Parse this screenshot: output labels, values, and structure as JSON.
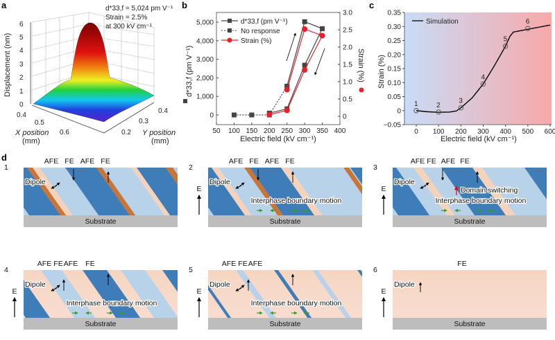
{
  "panel_labels": {
    "a": "a",
    "b": "b",
    "c": "c",
    "d": "d"
  },
  "panel_a": {
    "annotation": [
      "d*33,f = 5,024 pm V⁻¹",
      "Strain = 2.5%",
      "at 300 kV cm⁻¹"
    ],
    "zlabel": "Displacement (nm)",
    "z_ticks": [
      "0",
      "1",
      "2",
      "3",
      "4",
      "5",
      "6"
    ],
    "xlabel": [
      "X position",
      "(mm)"
    ],
    "x_ticks": [
      "0.4",
      "0.5",
      "0.6"
    ],
    "ylabel": [
      "Y position",
      "(mm)"
    ],
    "y_ticks": [
      "0.2",
      "0.3",
      "0.4"
    ],
    "colormap": "rainbow (purple-blue-cyan-green-yellow-red-dark red)"
  },
  "chart_data": [
    {
      "type": "line",
      "panel": "b",
      "xlabel": "Electric field (kV cm⁻¹)",
      "ylabel": "d*33,f (pm V⁻¹)",
      "ylabel_right": "Strain (%)",
      "xlim": [
        50,
        400
      ],
      "ylim": [
        -300,
        5500
      ],
      "ylim_right": [
        -0.15,
        3.0
      ],
      "x_ticks": [
        "50",
        "100",
        "150",
        "200",
        "250",
        "300",
        "350",
        "400"
      ],
      "y_ticks": [
        "0",
        "1,000",
        "2,000",
        "3,000",
        "4,000",
        "5,000"
      ],
      "y_ticks_right": [
        "0",
        "0.5",
        "1.0",
        "1.5",
        "2.0",
        "2.5",
        "3.0"
      ],
      "legend_position": "top-left",
      "series": [
        {
          "name": "d*33,f (pm V⁻¹)",
          "style": "solid",
          "color": "#444444",
          "marker": "square",
          "axis": "left",
          "x": [
            250,
            300,
            350,
            300,
            250,
            200
          ],
          "y": [
            1550,
            5024,
            4650,
            2680,
            330,
            100
          ]
        },
        {
          "name": "No response",
          "style": "dotted",
          "color": "#444444",
          "marker": "square",
          "axis": "left",
          "x": [
            100,
            150,
            200,
            250
          ],
          "y": [
            0,
            0,
            0,
            1550
          ]
        },
        {
          "name": "Strain (%)",
          "style": "solid",
          "color": "#e8202a",
          "marker": "circle",
          "axis": "right",
          "x": [
            250,
            300,
            350,
            300,
            250,
            200
          ],
          "y": [
            0.77,
            2.52,
            2.33,
            1.34,
            0.17,
            0.05
          ]
        }
      ]
    },
    {
      "type": "line",
      "panel": "c",
      "xlabel": "Electric field (kV cm⁻¹)",
      "ylabel": "Strain (%)",
      "xlim": [
        -40,
        600
      ],
      "ylim": [
        -0.05,
        0.35
      ],
      "x_ticks": [
        "0",
        "100",
        "200",
        "300",
        "400",
        "500",
        "600"
      ],
      "y_ticks": [
        "−0.05",
        "0",
        "0.05",
        "0.10",
        "0.15",
        "0.20",
        "0.25",
        "0.30",
        "0.35"
      ],
      "legend_position": "top-left",
      "background_gradient": [
        "#c9dcf7",
        "#f7a9a9"
      ],
      "series": [
        {
          "name": "Simulation",
          "color": "#000000",
          "x": [
            0,
            50,
            100,
            150,
            180,
            200,
            250,
            300,
            350,
            400,
            420,
            435,
            500,
            600
          ],
          "y": [
            0,
            -0.004,
            -0.006,
            -0.005,
            -0.001,
            0.01,
            0.045,
            0.095,
            0.16,
            0.23,
            0.265,
            0.28,
            0.29,
            0.305
          ]
        }
      ],
      "markers": {
        "labels": [
          "1",
          "2",
          "3",
          "4",
          "5",
          "6"
        ],
        "x": [
          0,
          100,
          200,
          300,
          400,
          500
        ],
        "y": [
          0,
          -0.005,
          0.01,
          0.095,
          0.23,
          0.293
        ]
      }
    }
  ],
  "panel_d": {
    "substrate": "Substrate",
    "dipole": "Dipole",
    "field": "E",
    "ibm": "Interphase boundary motion",
    "domain_switching": "Domain switching",
    "panels": [
      {
        "num": "1",
        "phases": [
          "AFE",
          "FE",
          "AFE",
          "FE"
        ]
      },
      {
        "num": "2",
        "phases": [
          "AFE",
          "FE",
          "AFE",
          "FE"
        ]
      },
      {
        "num": "3",
        "phases": [
          "AFE",
          "FE",
          "AFE",
          "FE"
        ]
      },
      {
        "num": "4",
        "phases": [
          "AFE",
          "FE",
          "AFE",
          "FE"
        ]
      },
      {
        "num": "5",
        "phases": [
          "AFE",
          "FE",
          "AFE"
        ]
      },
      {
        "num": "6",
        "phases": [
          "FE"
        ]
      }
    ]
  }
}
